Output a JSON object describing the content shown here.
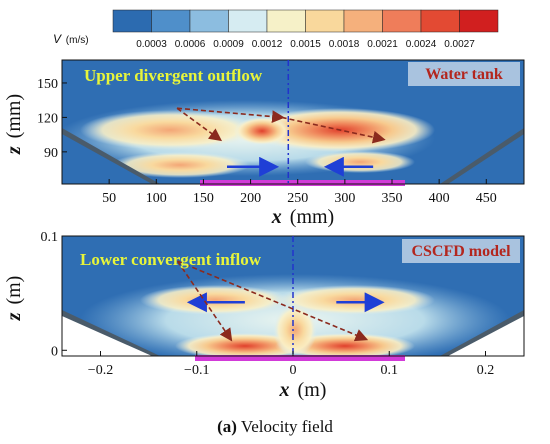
{
  "colorbar": {
    "label_symbol": "V",
    "label_unit": "(m/s)",
    "ticks": [
      "0.0003",
      "0.0006",
      "0.0009",
      "0.0012",
      "0.0015",
      "0.0018",
      "0.0021",
      "0.0024",
      "0.0027"
    ],
    "colors": [
      "#2c6bb0",
      "#4f8fca",
      "#8cbde0",
      "#d6ecf2",
      "#f6f1c8",
      "#f9d89c",
      "#f5b07c",
      "#ef7d5a",
      "#e34a33",
      "#d11f1f"
    ]
  },
  "chart_data": [
    {
      "type": "heatmap",
      "panel": "top",
      "label": "Water tank",
      "annotation": "Upper divergent outflow",
      "xlabel": "x",
      "xunit": "(mm)",
      "ylabel": "z",
      "yunit": "(mm)",
      "xlim": [
        0,
        490
      ],
      "ylim": [
        62,
        170
      ],
      "xticks": [
        50,
        100,
        150,
        200,
        250,
        300,
        350,
        400,
        450
      ],
      "yticks": [
        90,
        120,
        150
      ],
      "centerline_x": 240,
      "arrows": [
        {
          "from": [
            175,
            77
          ],
          "to": [
            225,
            77
          ]
        },
        {
          "from": [
            330,
            77
          ],
          "to": [
            283,
            77
          ]
        }
      ],
      "streamline_arrows": [
        {
          "from": [
            122,
            128
          ],
          "to": [
            167,
            101
          ]
        },
        {
          "from": [
            122,
            128
          ],
          "to": [
            233,
            120
          ]
        },
        {
          "from": [
            233,
            120
          ],
          "to": [
            340,
            101
          ]
        }
      ]
    },
    {
      "type": "heatmap",
      "panel": "bottom",
      "label": "CSCFD model",
      "annotation": "Lower convergent inflow",
      "xlabel": "x",
      "xunit": "(m)",
      "ylabel": "z",
      "yunit": "(m)",
      "xlim": [
        -0.24,
        0.24
      ],
      "ylim": [
        -0.005,
        0.1
      ],
      "xticks": [
        -0.2,
        -0.1,
        0,
        0.1,
        0.2
      ],
      "xtick_labels": [
        "−0.2",
        "−0.1",
        "0",
        "0.1",
        "0.2"
      ],
      "yticks": [
        0,
        0.1
      ],
      "ytick_labels": [
        "0",
        "0.1"
      ],
      "centerline_x": 0,
      "arrows": [
        {
          "from": [
            -0.05,
            0.042
          ],
          "to": [
            -0.105,
            0.042
          ]
        },
        {
          "from": [
            0.045,
            0.042
          ],
          "to": [
            0.09,
            0.042
          ]
        }
      ],
      "streamline_arrows": [
        {
          "from": [
            -0.12,
            0.078
          ],
          "to": [
            -0.065,
            0.01
          ]
        },
        {
          "from": [
            -0.12,
            0.078
          ],
          "to": [
            0.075,
            0.01
          ]
        }
      ]
    }
  ],
  "caption": {
    "label": "(a)",
    "text": " Velocity field"
  }
}
